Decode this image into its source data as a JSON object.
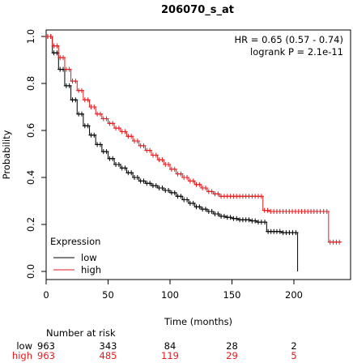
{
  "chart_data": {
    "type": "line",
    "subtype": "kaplan-meier",
    "title": "206070_s_at",
    "xlabel": "Time (months)",
    "ylabel": "Probability",
    "xlim": [
      0,
      245
    ],
    "ylim": [
      0,
      1
    ],
    "xticks": [
      0,
      50,
      100,
      150,
      200
    ],
    "yticks": [
      0.0,
      0.2,
      0.4,
      0.6,
      0.8,
      1.0
    ],
    "stats": {
      "hr_text": "HR = 0.65 (0.57 - 0.74)",
      "logrank_text": "logrank P = 2.1e-11"
    },
    "legend": {
      "title": "Expression",
      "position": "bottom-left",
      "entries": [
        {
          "label": "low",
          "color": "#000000"
        },
        {
          "label": "high",
          "color": "#e31a1c"
        }
      ]
    },
    "series": [
      {
        "name": "low",
        "color": "#000000",
        "x": [
          0,
          5,
          10,
          15,
          20,
          25,
          30,
          35,
          40,
          45,
          50,
          55,
          60,
          65,
          70,
          75,
          80,
          85,
          90,
          95,
          100,
          105,
          110,
          115,
          120,
          125,
          130,
          135,
          140,
          145,
          150,
          155,
          160,
          165,
          170,
          175,
          178,
          185,
          190,
          195,
          203
        ],
        "y": [
          1.0,
          0.93,
          0.86,
          0.79,
          0.73,
          0.67,
          0.62,
          0.58,
          0.54,
          0.51,
          0.48,
          0.455,
          0.44,
          0.42,
          0.4,
          0.385,
          0.375,
          0.365,
          0.355,
          0.345,
          0.335,
          0.32,
          0.305,
          0.29,
          0.275,
          0.265,
          0.255,
          0.245,
          0.235,
          0.23,
          0.225,
          0.22,
          0.22,
          0.215,
          0.21,
          0.21,
          0.17,
          0.17,
          0.165,
          0.165,
          0.0
        ]
      },
      {
        "name": "high",
        "color": "#e31a1c",
        "x": [
          0,
          5,
          10,
          15,
          20,
          25,
          30,
          35,
          40,
          45,
          50,
          55,
          60,
          65,
          70,
          75,
          80,
          85,
          90,
          95,
          100,
          105,
          110,
          115,
          120,
          125,
          130,
          135,
          140,
          150,
          160,
          170,
          175,
          180,
          190,
          200,
          210,
          220,
          228,
          238
        ],
        "y": [
          1.0,
          0.96,
          0.91,
          0.86,
          0.81,
          0.77,
          0.73,
          0.7,
          0.67,
          0.65,
          0.63,
          0.61,
          0.595,
          0.575,
          0.555,
          0.535,
          0.515,
          0.495,
          0.475,
          0.455,
          0.435,
          0.415,
          0.4,
          0.385,
          0.37,
          0.355,
          0.34,
          0.33,
          0.32,
          0.32,
          0.32,
          0.32,
          0.26,
          0.255,
          0.255,
          0.255,
          0.255,
          0.255,
          0.125,
          0.125
        ]
      }
    ],
    "risk_table": {
      "title": "Number at risk",
      "times": [
        0,
        50,
        100,
        150,
        200
      ],
      "rows": [
        {
          "label": "low",
          "color": "#000000",
          "values": [
            "963",
            "343",
            "84",
            "28",
            "2"
          ]
        },
        {
          "label": "high",
          "color": "#e31a1c",
          "values": [
            "963",
            "485",
            "119",
            "29",
            "5"
          ]
        }
      ]
    }
  }
}
